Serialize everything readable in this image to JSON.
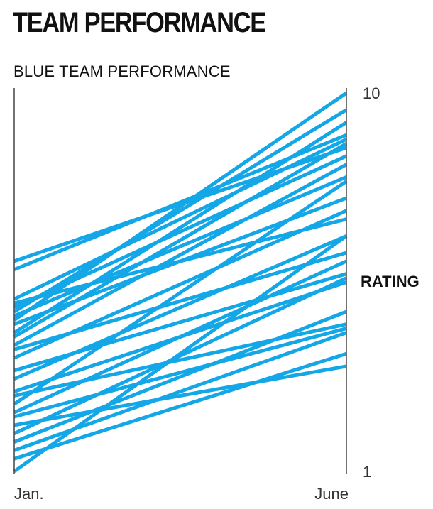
{
  "title": "TEAM PERFORMANCE",
  "subtitle": "BLUE TEAM PERFORMANCE",
  "colors": {
    "line": "#14a7e8",
    "axis": "#444444",
    "text": "#111111"
  },
  "chart_data": {
    "type": "line",
    "title": "BLUE TEAM PERFORMANCE",
    "xlabel": "",
    "ylabel": "RATING",
    "categories": [
      "Jan.",
      "June"
    ],
    "ylim": [
      1,
      10
    ],
    "y_ticks": [
      "10",
      "1"
    ],
    "grid": false,
    "legend": "none",
    "series": [
      {
        "values": [
          6.0,
          8.7
        ]
      },
      {
        "values": [
          5.8,
          9.0
        ]
      },
      {
        "values": [
          5.1,
          8.9
        ]
      },
      {
        "values": [
          5.0,
          7.0
        ]
      },
      {
        "values": [
          4.9,
          8.5
        ]
      },
      {
        "values": [
          4.8,
          9.6
        ]
      },
      {
        "values": [
          4.7,
          8.0
        ]
      },
      {
        "values": [
          4.6,
          10.0
        ]
      },
      {
        "values": [
          4.5,
          7.5
        ]
      },
      {
        "values": [
          4.3,
          9.3
        ]
      },
      {
        "values": [
          4.2,
          8.8
        ]
      },
      {
        "values": [
          4.0,
          8.3
        ]
      },
      {
        "values": [
          3.9,
          6.2
        ]
      },
      {
        "values": [
          3.7,
          7.2
        ]
      },
      {
        "values": [
          3.4,
          5.7
        ]
      },
      {
        "values": [
          3.2,
          6.6
        ]
      },
      {
        "values": [
          2.9,
          5.5
        ]
      },
      {
        "values": [
          2.8,
          4.5
        ]
      },
      {
        "values": [
          2.6,
          7.9
        ]
      },
      {
        "values": [
          2.4,
          6.0
        ]
      },
      {
        "values": [
          2.3,
          4.4
        ]
      },
      {
        "values": [
          2.1,
          3.5
        ]
      },
      {
        "values": [
          1.9,
          5.6
        ]
      },
      {
        "values": [
          1.7,
          4.8
        ]
      },
      {
        "values": [
          1.5,
          4.3
        ]
      },
      {
        "values": [
          1.3,
          3.8
        ]
      },
      {
        "values": [
          1.0,
          6.6
        ]
      }
    ]
  }
}
